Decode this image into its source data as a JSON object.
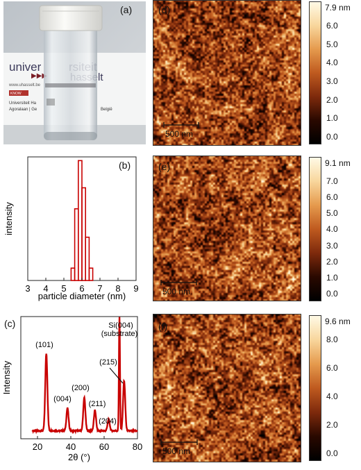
{
  "figure": {
    "panel_a": {
      "label": "(a)",
      "photo_text": {
        "brand_line1": "univer",
        "brand_line1b": "rsiteit",
        "brand_line2": "hasselt",
        "site": "www.uhasselt.be",
        "addr1": "Universiteit Ha",
        "addr2": "Agoralaan | Ge",
        "country": "België",
        "kno": "KNOW"
      }
    },
    "panel_b": {
      "label": "(b)"
    },
    "panel_c": {
      "label": "(c)",
      "peak_labels": {
        "p101": "(101)",
        "p004": "(004)",
        "p200": "(200)",
        "p211": "(211)",
        "p204": "(204)",
        "p215": "(215)",
        "si1": "Si(004)",
        "si2": "(substrate)"
      }
    },
    "panel_d": {
      "label": "(d)",
      "scalebar": "500 nm",
      "cbar_max": "7.9 nm",
      "cbar_ticks": [
        "6.0",
        "5.0",
        "4.0",
        "3.0",
        "2.0",
        "1.0",
        "0.0"
      ]
    },
    "panel_e": {
      "label": "(e)",
      "scalebar": "500 nm",
      "cbar_max": "9.1 nm",
      "cbar_ticks": [
        "7.0",
        "6.0",
        "5.0",
        "4.0",
        "3.0",
        "2.0",
        "1.0",
        "0.0"
      ]
    },
    "panel_f": {
      "label": "(f)",
      "scalebar": "500 nm",
      "cbar_max": "9.6 nm",
      "cbar_ticks": [
        "8.0",
        "6.0",
        "4.0",
        "2.0",
        "0.0"
      ]
    }
  },
  "chart_data": [
    {
      "type": "bar",
      "panel": "(b)",
      "xlabel": "particle diameter (nm)",
      "ylabel": "intensity",
      "xlim": [
        3,
        9
      ],
      "xticks": [
        "3",
        "4",
        "5",
        "6",
        "7",
        "8",
        "9"
      ],
      "bin_width": 0.2,
      "bins": [
        5.5,
        5.7,
        5.9,
        6.1,
        6.3,
        6.5
      ],
      "values": [
        0.1,
        0.58,
        0.97,
        0.75,
        0.35,
        0.1
      ],
      "style": "unfilled red bars"
    },
    {
      "type": "line",
      "panel": "(c)",
      "xlabel": "2θ (°)",
      "ylabel": "Intensity",
      "xlim": [
        10,
        80
      ],
      "xticks": [
        "20",
        "40",
        "60",
        "80"
      ],
      "peaks": [
        {
          "x": 25.3,
          "y": 0.68,
          "label": "(101)"
        },
        {
          "x": 38.0,
          "y": 0.2,
          "label": "(004)"
        },
        {
          "x": 48.1,
          "y": 0.29,
          "label": "(200)"
        },
        {
          "x": 54.5,
          "y": 0.18,
          "label": "(211)"
        },
        {
          "x": 62.7,
          "y": 0.1,
          "label": "(204)"
        },
        {
          "x": 69.2,
          "y": 1.0,
          "label": "Si(004) (substrate)"
        },
        {
          "x": 72.0,
          "y": 0.44,
          "label": "(215)"
        }
      ],
      "color": "#c80000"
    }
  ]
}
